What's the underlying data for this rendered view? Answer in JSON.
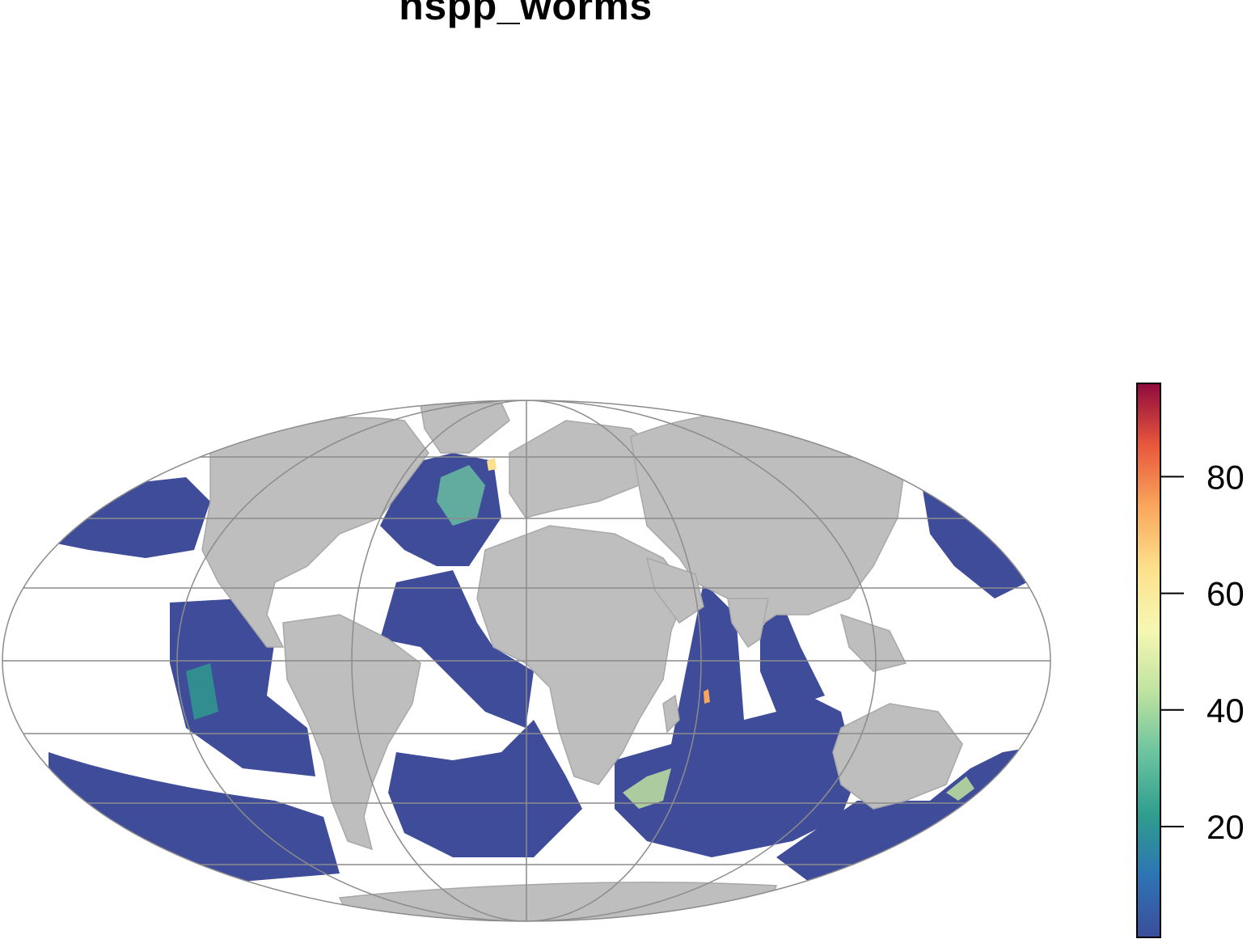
{
  "title": "nspp_worms",
  "projection": "Mollweide",
  "colors": {
    "land": "#bebebe",
    "land_border": "#a8a8a8",
    "graticule": "#8c8c8c",
    "ocean_no_data": "#ffffff"
  },
  "legend": {
    "palette": "Spectral (reversed)",
    "ramp": [
      "#3b4d9a",
      "#2e74b4",
      "#2f9d8e",
      "#6cc4a0",
      "#bfe3a0",
      "#f6f7b3",
      "#fde08b",
      "#f9a65c",
      "#e8573c",
      "#8e0a3e"
    ],
    "min": 1,
    "max": 96,
    "ticks": [
      {
        "value": 20,
        "label": "20"
      },
      {
        "value": 40,
        "label": "40"
      },
      {
        "value": 60,
        "label": "60"
      },
      {
        "value": 80,
        "label": "80"
      }
    ]
  }
}
